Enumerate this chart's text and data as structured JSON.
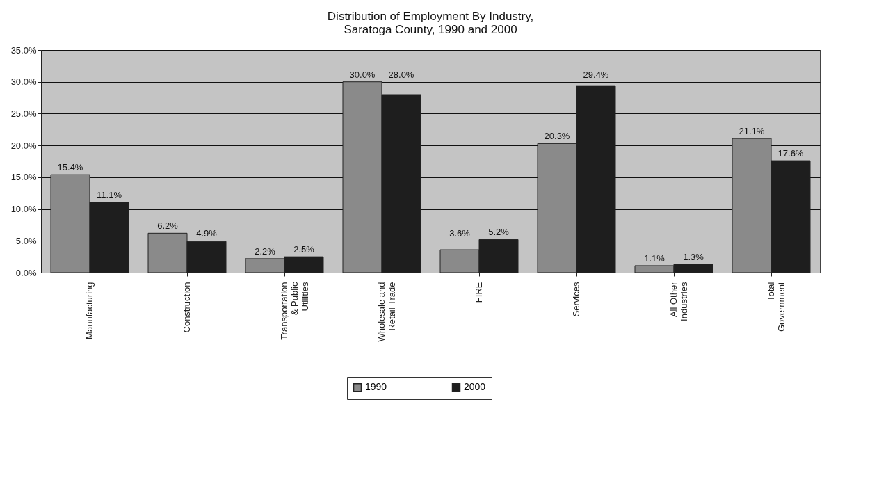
{
  "chart_data": {
    "type": "bar",
    "title": [
      "Distribution of Employment By Industry,",
      "Saratoga County, 1990 and 2000"
    ],
    "categories": [
      "Manufacturing",
      "Construction",
      "Transportation & Public Utilities",
      "Wholesale and Retail Trade",
      "FIRE",
      "Services",
      "All Other Industries",
      "Total Government"
    ],
    "series": [
      {
        "name": "1990",
        "color": "#8a8a8a",
        "values": [
          15.4,
          6.2,
          2.2,
          30.0,
          3.6,
          20.3,
          1.1,
          21.1
        ],
        "value_labels": [
          "15.4%",
          "6.2%",
          "2.2%",
          "30.0%",
          "3.6%",
          "20.3%",
          "1.1%",
          "21.1%"
        ]
      },
      {
        "name": "2000",
        "color": "#1e1e1e",
        "values": [
          11.1,
          4.9,
          2.5,
          28.0,
          5.2,
          29.4,
          1.3,
          17.6
        ],
        "value_labels": [
          "11.1%",
          "4.9%",
          "2.5%",
          "28.0%",
          "5.2%",
          "29.4%",
          "1.3%",
          "17.6%"
        ]
      }
    ],
    "ylim": [
      0,
      35
    ],
    "yticks": [
      {
        "value": 0,
        "label": "0.0%"
      },
      {
        "value": 5,
        "label": "5.0%"
      },
      {
        "value": 10,
        "label": "10.0%"
      },
      {
        "value": 15,
        "label": "15.0%"
      },
      {
        "value": 20,
        "label": "20.0%"
      },
      {
        "value": 25,
        "label": "25.0%"
      },
      {
        "value": 30,
        "label": "30.0%"
      },
      {
        "value": 35,
        "label": "35.0%"
      }
    ],
    "grid": "y",
    "legend": "bottom"
  }
}
